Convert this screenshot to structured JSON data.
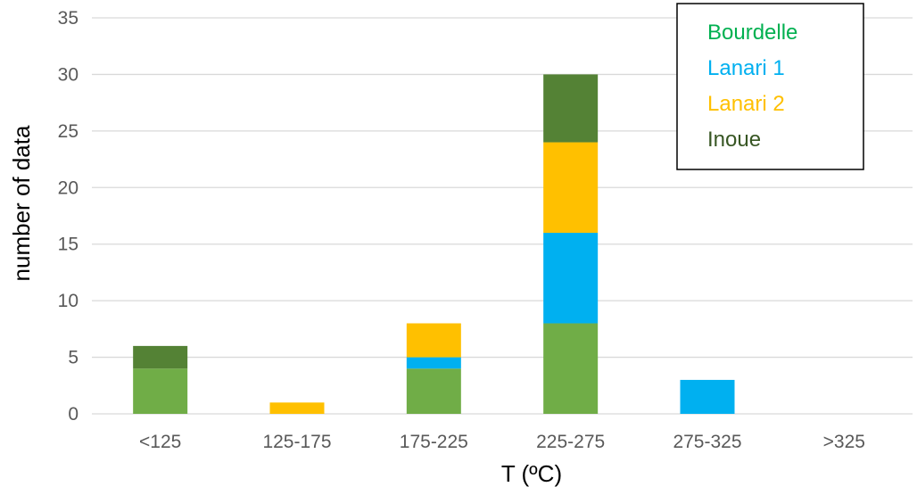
{
  "chart_data": {
    "type": "bar",
    "stacked": true,
    "categories": [
      "<125",
      "125-175",
      "175-225",
      "225-275",
      "275-325",
      ">325"
    ],
    "series": [
      {
        "name": "Bourdelle",
        "values": [
          4,
          0,
          4,
          8,
          0,
          0
        ]
      },
      {
        "name": "Lanari 1",
        "values": [
          0,
          0,
          1,
          8,
          3,
          0
        ]
      },
      {
        "name": "Lanari 2",
        "values": [
          0,
          1,
          3,
          8,
          0,
          0
        ]
      },
      {
        "name": "Inoue",
        "values": [
          2,
          0,
          0,
          6,
          0,
          0
        ]
      }
    ],
    "xlabel": "T (ºC)",
    "ylabel": "number of data",
    "ylim": [
      0,
      35
    ],
    "yticks": [
      "0",
      "5",
      "10",
      "15",
      "20",
      "25",
      "30",
      "35"
    ],
    "grid": "horizontal",
    "legend_position": "top-right"
  },
  "colors": {
    "bar_fills": [
      "#70ad47",
      "#00b0f0",
      "#ffc000",
      "#548235"
    ],
    "legend_text": [
      "#00b050",
      "#00b0f0",
      "#ffc000",
      "#375623"
    ],
    "grid": "#d9d9d9",
    "tick_text": "#595959",
    "title_text": "#000000",
    "legend_border": "#000000"
  }
}
